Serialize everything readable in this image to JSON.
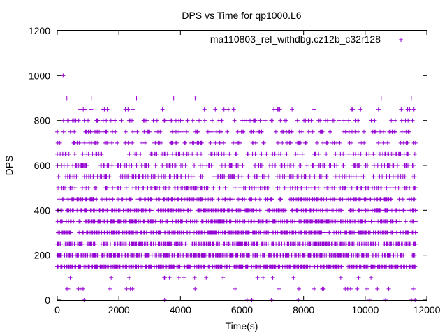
{
  "chart_data": {
    "type": "scatter",
    "title": "DPS vs Time for qp1000.L6",
    "xlabel": "Time(s)",
    "ylabel": "DPS",
    "xlim": [
      0,
      12000
    ],
    "ylim": [
      0,
      1200
    ],
    "x_ticks": [
      0,
      2000,
      4000,
      6000,
      8000,
      10000,
      12000
    ],
    "x_tick_labels": [
      "0",
      "2000",
      "4000",
      "6000",
      "8000",
      "10000",
      "12000"
    ],
    "y_ticks": [
      0,
      200,
      400,
      600,
      800,
      1000,
      1200
    ],
    "y_tick_labels": [
      "0",
      "200",
      "400",
      "600",
      "800",
      "1000",
      "1200"
    ],
    "grid": false,
    "legend_position": "top-right",
    "marker": "plus",
    "series": [
      {
        "name": "ma110803_rel_withdbg.cz12b_c32r128",
        "color": "#9400d3",
        "x_range": [
          0,
          11650
        ],
        "band_density": [
          {
            "y": 0,
            "n": 10
          },
          {
            "y": 50,
            "n": 26
          },
          {
            "y": 100,
            "n": 18
          },
          {
            "y": 150,
            "n": 460
          },
          {
            "y": 200,
            "n": 460
          },
          {
            "y": 250,
            "n": 400
          },
          {
            "y": 300,
            "n": 380
          },
          {
            "y": 350,
            "n": 340
          },
          {
            "y": 400,
            "n": 280
          },
          {
            "y": 450,
            "n": 220
          },
          {
            "y": 500,
            "n": 180
          },
          {
            "y": 550,
            "n": 150
          },
          {
            "y": 600,
            "n": 150
          },
          {
            "y": 650,
            "n": 120
          },
          {
            "y": 700,
            "n": 100
          },
          {
            "y": 750,
            "n": 100
          },
          {
            "y": 800,
            "n": 90
          },
          {
            "y": 850,
            "n": 30
          },
          {
            "y": 900,
            "n": 7
          },
          {
            "y": 1000,
            "n": 1
          }
        ]
      }
    ]
  }
}
